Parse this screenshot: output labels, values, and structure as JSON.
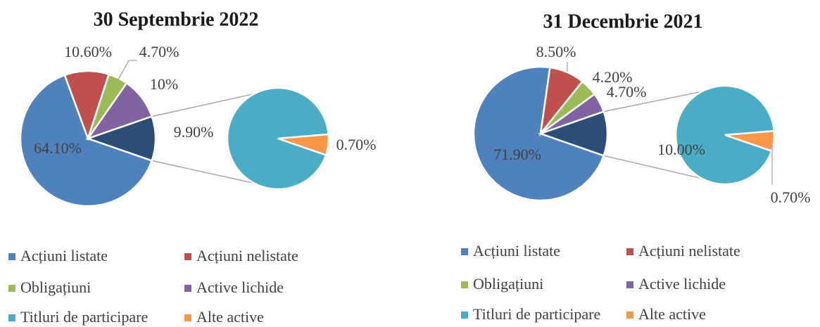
{
  "chart_data": [
    {
      "type": "pie-of-pie",
      "title": "30 Septembrie 2022",
      "categories": [
        "Acțiuni listate",
        "Acțiuni nelistate",
        "Obligațiuni",
        "Active lichide",
        "Titluri de participare",
        "Alte active"
      ],
      "values": [
        64.1,
        10.6,
        4.7,
        10,
        9.9,
        0.7
      ],
      "value_labels": [
        "64.10%",
        "10.60%",
        "4.70%",
        "10%",
        "9.90%",
        "0.70%"
      ],
      "colors": [
        "#4f81bd",
        "#c0504d",
        "#9bbb59",
        "#8064a2",
        "#4bacc6",
        "#f79646"
      ],
      "other_color": "#2c4d75",
      "second_plot_values": 2,
      "legend": "bottom"
    },
    {
      "type": "pie-of-pie",
      "title": "31 Decembrie 2021",
      "categories": [
        "Acțiuni listate",
        "Acțiuni nelistate",
        "Obligațiuni",
        "Active lichide",
        "Titluri de participare",
        "Alte active"
      ],
      "values": [
        71.9,
        8.5,
        4.2,
        4.7,
        10.0,
        0.7
      ],
      "value_labels": [
        "71.90%",
        "8.50%",
        "4.20%",
        "4.70%",
        "10.00%",
        "0.70%"
      ],
      "colors": [
        "#4f81bd",
        "#c0504d",
        "#9bbb59",
        "#8064a2",
        "#4bacc6",
        "#f79646"
      ],
      "other_color": "#2c4d75",
      "second_plot_values": 2,
      "legend": "bottom"
    }
  ]
}
